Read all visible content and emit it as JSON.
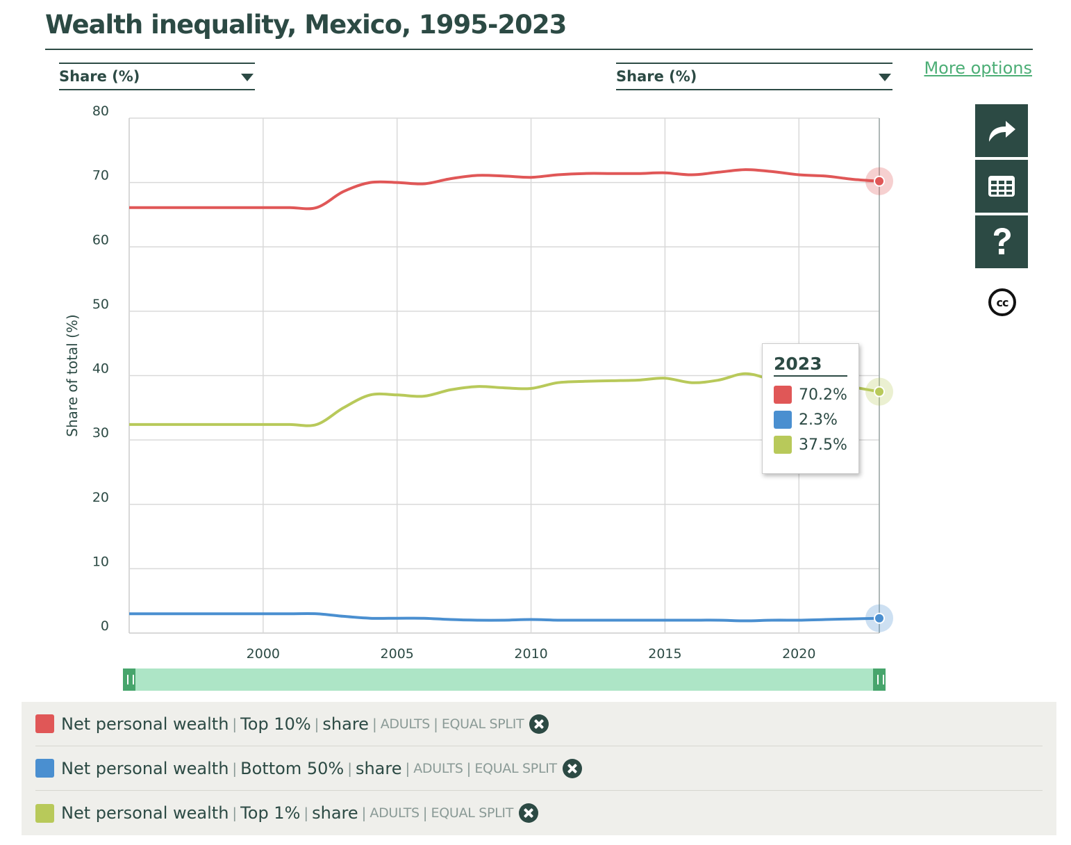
{
  "title": "Wealth inequality, Mexico, 1995-2023",
  "left_select": {
    "value": "Share (%)"
  },
  "right_select": {
    "value": "Share (%)"
  },
  "more_options": "More options",
  "side_buttons": [
    "share-icon",
    "table-icon",
    "help-icon"
  ],
  "cc_label": "cc",
  "tooltip": {
    "year": "2023",
    "rows": [
      {
        "color": "#e05757",
        "value": "70.2%"
      },
      {
        "color": "#4a8fd0",
        "value": "2.3%"
      },
      {
        "color": "#b8c95a",
        "value": "37.5%"
      }
    ]
  },
  "legend": [
    {
      "color": "#e05757",
      "variable": "Net personal wealth",
      "group": "Top 10%",
      "measure": "share",
      "population": "ADULTS",
      "split": "EQUAL SPLIT"
    },
    {
      "color": "#4a8fd0",
      "variable": "Net personal wealth",
      "group": "Bottom 50%",
      "measure": "share",
      "population": "ADULTS",
      "split": "EQUAL SPLIT"
    },
    {
      "color": "#b8c95a",
      "variable": "Net personal wealth",
      "group": "Top 1%",
      "measure": "share",
      "population": "ADULTS",
      "split": "EQUAL SPLIT"
    }
  ],
  "chart_data": {
    "type": "line",
    "title": "Wealth inequality, Mexico, 1995-2023",
    "xlabel": "",
    "ylabel": "Share of total (%)",
    "xlim": [
      1995,
      2023
    ],
    "ylim": [
      0,
      80
    ],
    "x_ticks": [
      2000,
      2005,
      2010,
      2015,
      2020
    ],
    "y_ticks": [
      0,
      10,
      20,
      30,
      40,
      50,
      60,
      70,
      80
    ],
    "grid": true,
    "x": [
      1995,
      1996,
      1997,
      1998,
      1999,
      2000,
      2001,
      2002,
      2003,
      2004,
      2005,
      2006,
      2007,
      2008,
      2009,
      2010,
      2011,
      2012,
      2013,
      2014,
      2015,
      2016,
      2017,
      2018,
      2019,
      2020,
      2021,
      2022,
      2023
    ],
    "series": [
      {
        "color": "#e05757",
        "values": [
          66.1,
          66.1,
          66.1,
          66.1,
          66.1,
          66.1,
          66.1,
          66.1,
          68.6,
          70.0,
          70.0,
          69.8,
          70.6,
          71.1,
          71.0,
          70.8,
          71.2,
          71.4,
          71.4,
          71.4,
          71.5,
          71.2,
          71.6,
          72.0,
          71.7,
          71.2,
          71.0,
          70.5,
          70.2
        ]
      },
      {
        "color": "#4a8fd0",
        "values": [
          3.0,
          3.0,
          3.0,
          3.0,
          3.0,
          3.0,
          3.0,
          3.0,
          2.6,
          2.3,
          2.3,
          2.3,
          2.1,
          2.0,
          2.0,
          2.1,
          2.0,
          2.0,
          2.0,
          2.0,
          2.0,
          2.0,
          2.0,
          1.9,
          2.0,
          2.0,
          2.1,
          2.2,
          2.3
        ]
      },
      {
        "color": "#b8c95a",
        "values": [
          32.4,
          32.4,
          32.4,
          32.4,
          32.4,
          32.4,
          32.4,
          32.4,
          35.0,
          37.0,
          37.0,
          36.8,
          37.8,
          38.3,
          38.1,
          38.0,
          38.9,
          39.1,
          39.2,
          39.3,
          39.6,
          38.9,
          39.3,
          40.3,
          39.4,
          38.9,
          38.7,
          38.2,
          37.5
        ]
      }
    ]
  }
}
